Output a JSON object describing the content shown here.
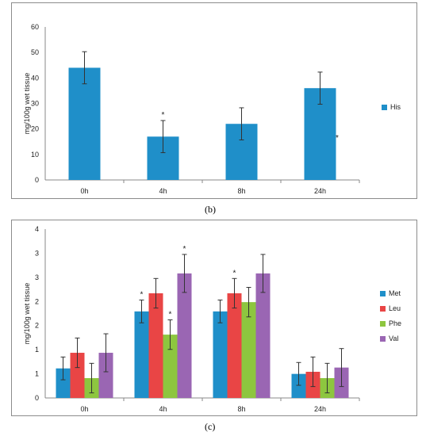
{
  "figure": {
    "panel_b_label": "(b)",
    "panel_c_label": "(c)"
  },
  "chart_data": [
    {
      "type": "bar",
      "title": "",
      "xlabel": "",
      "ylabel": "mg/100g wet tissue",
      "ylim": [
        0,
        60
      ],
      "yticks": [
        "0",
        "10",
        "20",
        "30",
        "40",
        "50",
        "60"
      ],
      "categories": [
        "0h",
        "4h",
        "8h",
        "24h"
      ],
      "series": [
        {
          "name": "His",
          "color": "#1f8fc9",
          "values": [
            44,
            17,
            22,
            36
          ],
          "errors": [
            6.3,
            6.3,
            6.3,
            6.3
          ],
          "significant": [
            false,
            true,
            false,
            false
          ]
        }
      ],
      "annotations": [
        "*",
        "*"
      ],
      "legend": "right",
      "grid": false
    },
    {
      "type": "bar",
      "title": "",
      "xlabel": "",
      "ylabel": "mg/100g wet tissue",
      "ylim": [
        0,
        4
      ],
      "yticks": [
        "0",
        "1",
        "1",
        "2",
        "2",
        "3",
        "3",
        "4"
      ],
      "categories": [
        "0h",
        "4h",
        "8h",
        "24h"
      ],
      "series": [
        {
          "name": "Met",
          "color": "#1f8fc9",
          "values": [
            0.7,
            2.05,
            2.05,
            0.57
          ],
          "errors": [
            0.27,
            0.27,
            0.27,
            0.27
          ],
          "significant": [
            false,
            true,
            false,
            false
          ]
        },
        {
          "name": "Leu",
          "color": "#e94545",
          "values": [
            1.07,
            2.48,
            2.48,
            0.62
          ],
          "errors": [
            0.35,
            0.35,
            0.35,
            0.35
          ],
          "significant": [
            false,
            false,
            true,
            false
          ]
        },
        {
          "name": "Phe",
          "color": "#8dc63f",
          "values": [
            0.47,
            1.5,
            2.27,
            0.47
          ],
          "errors": [
            0.35,
            0.35,
            0.35,
            0.35
          ],
          "significant": [
            false,
            true,
            false,
            false
          ]
        },
        {
          "name": "Val",
          "color": "#9a66b3",
          "values": [
            1.07,
            2.95,
            2.95,
            0.72
          ],
          "errors": [
            0.45,
            0.45,
            0.45,
            0.45
          ],
          "significant": [
            false,
            true,
            false,
            false
          ]
        }
      ],
      "legend": "right",
      "grid": false
    }
  ]
}
